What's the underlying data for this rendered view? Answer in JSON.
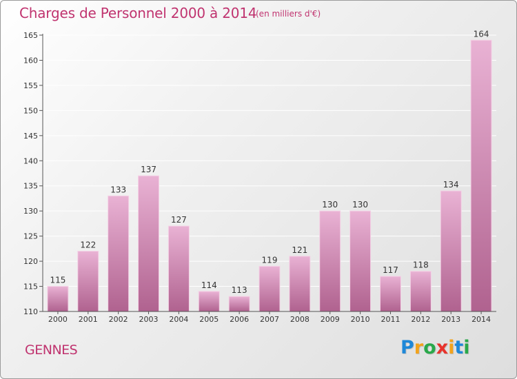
{
  "title": "Charges de Personnel 2000 à 2014",
  "subtitle": "(en milliers d'€)",
  "place": "GENNES",
  "logo": {
    "text": "Proxiti",
    "letters": [
      {
        "ch": "P",
        "color": "#1e88d8"
      },
      {
        "ch": "r",
        "color": "#f2a31c"
      },
      {
        "ch": "o",
        "color": "#2aa84a"
      },
      {
        "ch": "x",
        "color": "#e8332c"
      },
      {
        "ch": "i",
        "color": "#f2a31c"
      },
      {
        "ch": "t",
        "color": "#1e88d8"
      },
      {
        "ch": "i",
        "color": "#2aa84a"
      }
    ]
  },
  "colors": {
    "accent": "#c0336f",
    "bar_top": "#e9b2d4",
    "bar_bottom": "#b0628f",
    "axis": "#555555",
    "grid": "#ffffff"
  },
  "chart_data": {
    "type": "bar",
    "title": "Charges de Personnel 2000 à 2014",
    "categories": [
      "2000",
      "2001",
      "2002",
      "2003",
      "2004",
      "2005",
      "2006",
      "2007",
      "2008",
      "2009",
      "2010",
      "2011",
      "2012",
      "2013",
      "2014"
    ],
    "values": [
      115,
      122,
      133,
      137,
      127,
      114,
      113,
      119,
      121,
      130,
      130,
      117,
      118,
      134,
      164
    ],
    "ylim": [
      110,
      165
    ],
    "yticks": [
      110,
      115,
      120,
      125,
      130,
      135,
      140,
      145,
      150,
      155,
      160,
      165
    ],
    "grid": true,
    "data_labels": true
  }
}
